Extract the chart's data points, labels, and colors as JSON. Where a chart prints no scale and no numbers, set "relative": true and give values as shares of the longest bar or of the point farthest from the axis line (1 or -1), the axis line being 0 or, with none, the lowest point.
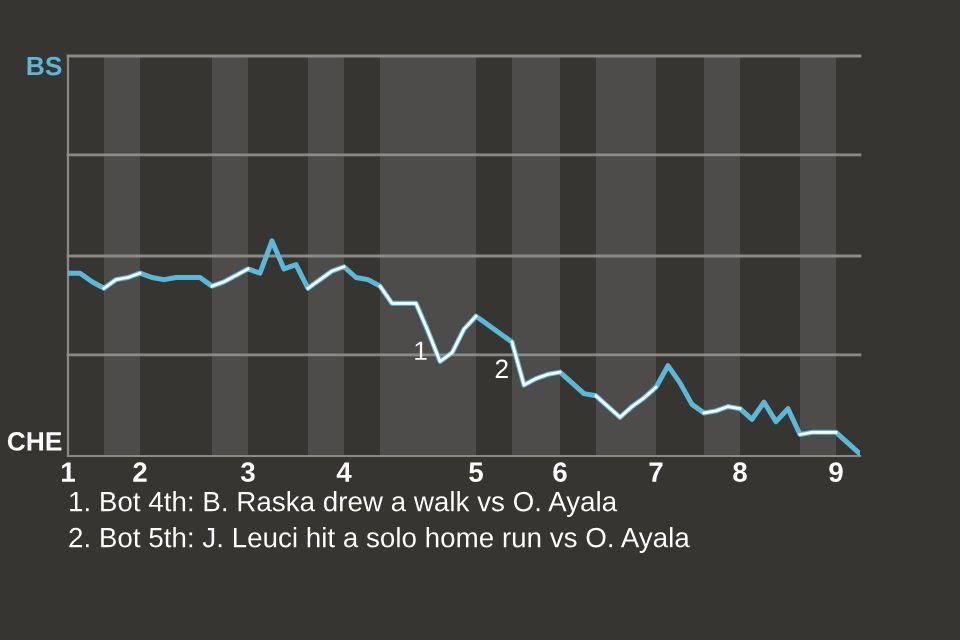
{
  "chart_data": {
    "type": "line",
    "relative": true,
    "categories": [
      "1",
      null,
      null,
      null,
      null,
      null,
      "2",
      null,
      null,
      null,
      null,
      null,
      null,
      null,
      null,
      "3",
      null,
      null,
      null,
      null,
      null,
      null,
      null,
      "4",
      null,
      null,
      null,
      null,
      null,
      null,
      null,
      null,
      null,
      null,
      "5",
      null,
      null,
      null,
      null,
      null,
      null,
      "6",
      null,
      null,
      null,
      null,
      null,
      null,
      null,
      "7",
      null,
      null,
      null,
      null,
      null,
      null,
      "8",
      null,
      null,
      null,
      null,
      null,
      null,
      null,
      "9",
      null,
      null
    ],
    "marker": "none",
    "line_style": "solid",
    "ref_lines": [
      {
        "axis": "y",
        "value": 0.47,
        "color": "#8a8987"
      },
      {
        "axis": "y",
        "value": 0.93,
        "color": "#8a8987"
      },
      {
        "axis": "y",
        "value": 1.4,
        "color": "#8a8987"
      },
      {
        "axis": "y",
        "value": 1.86,
        "color": "#8a8987"
      }
    ],
    "series": [
      {
        "name": "BS",
        "color": "#5bb8d6",
        "values": [
          0.85,
          0.85,
          0.81,
          0.78,
          0.82,
          0.83,
          0.85,
          0.83,
          0.82,
          0.83,
          0.83,
          0.83,
          0.79,
          0.81,
          0.84,
          0.87,
          0.85,
          1,
          0.87,
          0.89,
          0.78,
          0.82,
          0.86,
          0.88,
          0.83,
          0.82,
          0.79,
          0.71,
          0.71,
          0.71,
          0.58,
          0.44,
          0.48,
          0.59,
          0.65,
          0.61,
          0.57,
          0.53,
          0.33,
          0.36,
          0.38,
          0.39,
          0.34,
          0.29,
          0.28,
          0.23,
          0.18,
          0.23,
          0.27,
          0.32,
          0.42,
          0.34,
          0.24,
          0.2,
          0.21,
          0.23,
          0.22,
          0.17,
          0.25,
          0.16,
          0.22,
          0.1,
          0.11,
          0.11,
          0.11,
          0.06,
          0.01
        ]
      },
      {
        "name": "CHE",
        "color": "#ffffff",
        "values": [
          null,
          null,
          null,
          0.78,
          0.82,
          0.83,
          0.85,
          null,
          null,
          null,
          null,
          null,
          0.79,
          0.81,
          0.84,
          0.87,
          null,
          null,
          null,
          null,
          0.78,
          0.82,
          0.86,
          0.88,
          null,
          null,
          0.79,
          0.71,
          0.71,
          0.71,
          0.58,
          0.44,
          0.48,
          0.59,
          0.65,
          null,
          null,
          0.53,
          0.33,
          0.36,
          0.38,
          0.39,
          null,
          null,
          0.28,
          0.23,
          0.18,
          0.23,
          0.27,
          0.32,
          null,
          null,
          null,
          0.2,
          0.21,
          0.23,
          0.22,
          null,
          null,
          null,
          null,
          0.1,
          0.11,
          0.11,
          0.11,
          null,
          null
        ]
      }
    ],
    "annotations": [
      "1",
      "2",
      "1. Bot 4th: B. Raska drew a walk vs O. Ayala",
      "2. Bot 5th: J. Leuci hit a solo home run vs O. Ayala"
    ]
  }
}
